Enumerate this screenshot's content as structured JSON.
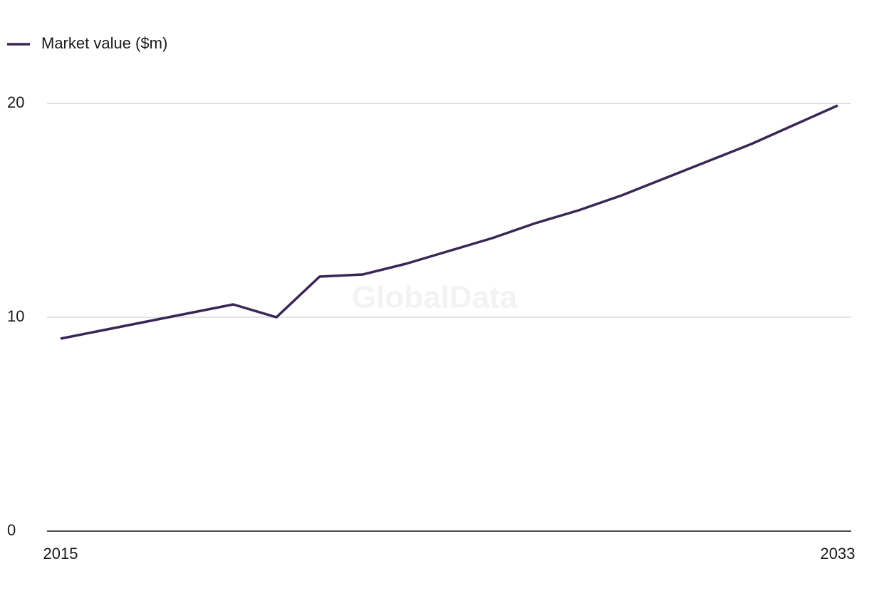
{
  "chart_data": {
    "type": "line",
    "watermark": "GlobalData",
    "x": [
      2015,
      2016,
      2017,
      2018,
      2019,
      2020,
      2021,
      2022,
      2023,
      2024,
      2025,
      2026,
      2027,
      2028,
      2029,
      2030,
      2031,
      2032,
      2033
    ],
    "series": [
      {
        "name": "Market value ($m)",
        "color": "#3a2655",
        "values": [
          9.0,
          9.4,
          9.8,
          10.2,
          10.6,
          10.0,
          11.9,
          12.0,
          12.5,
          13.1,
          13.7,
          14.4,
          15.0,
          15.7,
          16.5,
          17.3,
          18.1,
          19.0,
          19.9
        ]
      }
    ],
    "xlim": [
      2015,
      2033
    ],
    "xticks": [
      2015,
      2033
    ],
    "ylim": [
      0,
      20
    ],
    "yticks": [
      0,
      10,
      20
    ],
    "grid": true,
    "legend": "top-left"
  }
}
